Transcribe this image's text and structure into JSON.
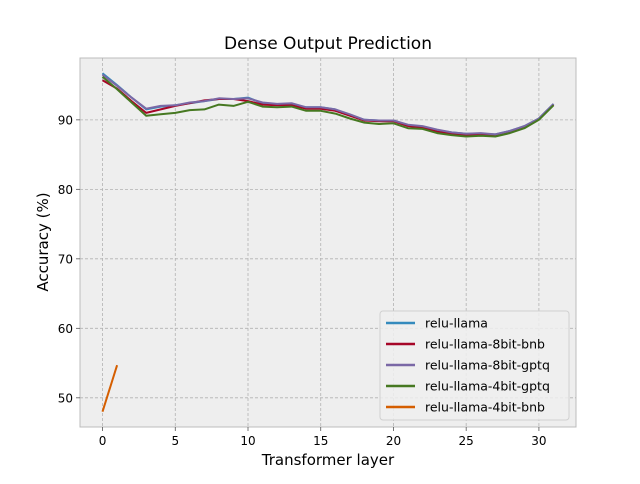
{
  "chart_data": {
    "type": "line",
    "title": "Dense Output Prediction",
    "xlabel": "Transformer layer",
    "ylabel": "Accuracy (%)",
    "xlim": [
      -1.55,
      32.55
    ],
    "ylim": [
      45.8,
      98.9
    ],
    "xticks": [
      0,
      5,
      10,
      15,
      20,
      25,
      30
    ],
    "yticks": [
      50,
      60,
      70,
      80,
      90
    ],
    "grid": true,
    "legend_position": "lower-right",
    "series": [
      {
        "name": "relu-llama",
        "color": "#348ABD",
        "x": [
          0,
          1,
          2,
          3,
          4,
          5,
          6,
          7,
          8,
          9,
          10,
          11,
          12,
          13,
          14,
          15,
          16,
          17,
          18,
          19,
          20,
          21,
          22,
          23,
          24,
          25,
          26,
          27,
          28,
          29,
          30,
          31
        ],
        "values": [
          96.7,
          95.0,
          93.2,
          91.5,
          91.9,
          92.1,
          92.4,
          92.7,
          93.0,
          93.0,
          93.2,
          92.4,
          92.2,
          92.3,
          91.8,
          91.8,
          91.5,
          90.7,
          90.0,
          89.9,
          89.9,
          89.2,
          89.0,
          88.5,
          88.2,
          88.0,
          88.0,
          87.9,
          88.4,
          89.1,
          90.2,
          92.3
        ]
      },
      {
        "name": "relu-llama-8bit-bnb",
        "color": "#A60628",
        "x": [
          0,
          1,
          2,
          3,
          4,
          5,
          6,
          7,
          8,
          9,
          10,
          11,
          12,
          13,
          14,
          15,
          16,
          17,
          18,
          19,
          20,
          21,
          22,
          23,
          24,
          25,
          26,
          27,
          28,
          29,
          30,
          31
        ],
        "values": [
          95.7,
          94.5,
          92.7,
          91.0,
          91.5,
          92.0,
          92.4,
          92.8,
          93.0,
          93.0,
          92.7,
          92.2,
          92.1,
          92.1,
          91.6,
          91.6,
          91.3,
          90.6,
          89.9,
          89.8,
          89.8,
          89.1,
          88.9,
          88.3,
          88.0,
          87.8,
          87.9,
          87.8,
          88.3,
          89.0,
          90.1,
          92.2
        ]
      },
      {
        "name": "relu-llama-8bit-gptq",
        "color": "#7A68A6",
        "x": [
          0,
          1,
          2,
          3,
          4,
          5,
          6,
          7,
          8,
          9,
          10,
          11,
          12,
          13,
          14,
          15,
          16,
          17,
          18,
          19,
          20,
          21,
          22,
          23,
          24,
          25,
          26,
          27,
          28,
          29,
          30,
          31
        ],
        "values": [
          96.5,
          94.9,
          93.2,
          91.6,
          92.0,
          92.1,
          92.5,
          92.7,
          93.1,
          93.0,
          93.1,
          92.5,
          92.3,
          92.4,
          91.8,
          91.8,
          91.5,
          90.8,
          90.0,
          89.9,
          89.9,
          89.3,
          89.1,
          88.6,
          88.2,
          88.0,
          88.1,
          87.9,
          88.4,
          89.1,
          90.2,
          92.3
        ]
      },
      {
        "name": "relu-llama-4bit-gptq",
        "color": "#467821",
        "x": [
          0,
          1,
          2,
          3,
          4,
          5,
          6,
          7,
          8,
          9,
          10,
          11,
          12,
          13,
          14,
          15,
          16,
          17,
          18,
          19,
          20,
          21,
          22,
          23,
          24,
          25,
          26,
          27,
          28,
          29,
          30,
          31
        ],
        "values": [
          96.2,
          94.4,
          92.5,
          90.6,
          90.8,
          91.0,
          91.4,
          91.5,
          92.2,
          92.0,
          92.6,
          91.9,
          91.8,
          91.9,
          91.3,
          91.3,
          90.9,
          90.2,
          89.6,
          89.4,
          89.5,
          88.8,
          88.7,
          88.1,
          87.8,
          87.6,
          87.7,
          87.6,
          88.1,
          88.8,
          90.0,
          92.1
        ]
      },
      {
        "name": "relu-llama-4bit-bnb",
        "color": "#D55E00",
        "x": [
          0,
          1
        ],
        "values": [
          48.0,
          54.7
        ]
      }
    ]
  }
}
